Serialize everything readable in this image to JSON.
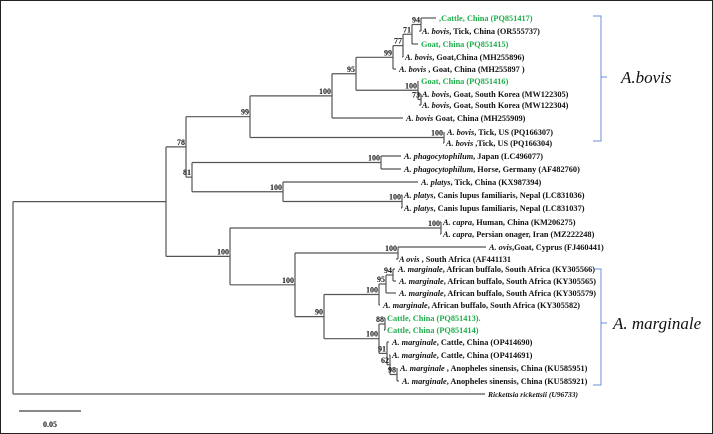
{
  "leaves": [
    {
      "species": "",
      "rest": ",Cattle, China (PQ851417)",
      "highlight": true
    },
    {
      "species": "A. bovis",
      "rest": ", Tick, China (OR555737)"
    },
    {
      "species": "",
      "rest": "Goat, China (PQ851415)",
      "highlight": true
    },
    {
      "species": "A. bovis",
      "rest": ", Goat,China (MH255896)"
    },
    {
      "species": "A. bovis",
      "rest": " , Goat, China (MH255897 )"
    },
    {
      "species": "",
      "rest": "Goat, China (PQ851416)",
      "highlight": true
    },
    {
      "species": "A. bovis",
      "rest": ", Goat, South Korea (MW122305)"
    },
    {
      "species": "A. bovis",
      "rest": ", Goat, South Korea (MW122304)"
    },
    {
      "species": "A. bovis",
      "rest": " Goat, China (MH255909)"
    },
    {
      "species": "A. bovis",
      "rest": ", Tick, US (PQ166307)"
    },
    {
      "species": "A. bovis",
      "rest": " ,Tick, US (PQ166304)"
    },
    {
      "species": "A. phagocytophilum",
      "rest": ", Japan (LC496077)"
    },
    {
      "species": "A.  phagocytophilum",
      "rest": ", Horse, Germany (AF482760)"
    },
    {
      "species": "A. platys",
      "rest": ", Tick, China (KX987394)"
    },
    {
      "species": "A. platys",
      "rest": ", Canis lupus familiaris, Nepal (LC831036)"
    },
    {
      "species": "A.  platys",
      "rest": ", Canis lupus familiaris, Nepal (LC831037)"
    },
    {
      "species": "A. capra",
      "rest": ", Human, China (KM206275)"
    },
    {
      "species": "A. capra",
      "rest": ", Persian onager, Iran (MZ222248)"
    },
    {
      "species": "A. ovis",
      "rest": ",Goat, Cyprus (FJ460441)"
    },
    {
      "species": "A ovis",
      "rest": " , South Africa (AF441131"
    },
    {
      "species": "A. marginale",
      "rest": ", African buffalo, South Africa  (KY305566)"
    },
    {
      "species": "A. marginale",
      "rest": ", African buffalo, South Africa (KY305565)"
    },
    {
      "species": "A. marginale",
      "rest": ", African buffalo, South Africa (KY305579)"
    },
    {
      "species": "A. marginale",
      "rest": ", African buffalo, South Africa (KY305582)"
    },
    {
      "species": "",
      "rest": "Cattle, China (PQ851413).",
      "highlight": true
    },
    {
      "species": "",
      "rest": "Cattle, China (PQ851414)",
      "highlight": true
    },
    {
      "species": "A. marginale",
      "rest": ", Cattle, China (OP414690)"
    },
    {
      "species": "A. marginale",
      "rest": ", Cattle, China (OP414691)"
    },
    {
      "species": "A. marginale",
      "rest": " , Anopheles sinensis, China (KU585951)"
    },
    {
      "species": "A. marginale",
      "rest": ", Anopheles sinensis, China (KU585921)"
    },
    {
      "species": "Rickettsia rickettsii (U96733)",
      "rest": ""
    }
  ],
  "bootstrap": {
    "b94": "94",
    "b71": "71",
    "b77": "77",
    "b99a": "99",
    "b73": "73",
    "b100c": "100",
    "b95": "95",
    "b100b": "100",
    "b100d": "100",
    "b99": "99",
    "p100e": "100",
    "p100f": "100",
    "p100g": "100",
    "n81": "81",
    "n78": "78",
    "c100h": "100",
    "o100i": "100",
    "m94": "94",
    "m95": "95",
    "m100": "100",
    "m88": "88",
    "m98": "98",
    "m62": "62",
    "m91": "91",
    "m100n": "100",
    "m90": "90",
    "m100o": "100",
    "m100p": "100"
  },
  "clades": {
    "bovis": "A.bovis",
    "marginale": "A. marginale"
  },
  "scale_bar": "0.05",
  "colors": {
    "highlight": "#1fae4b",
    "bracket": "#6a8fd8",
    "branch": "#555555"
  }
}
